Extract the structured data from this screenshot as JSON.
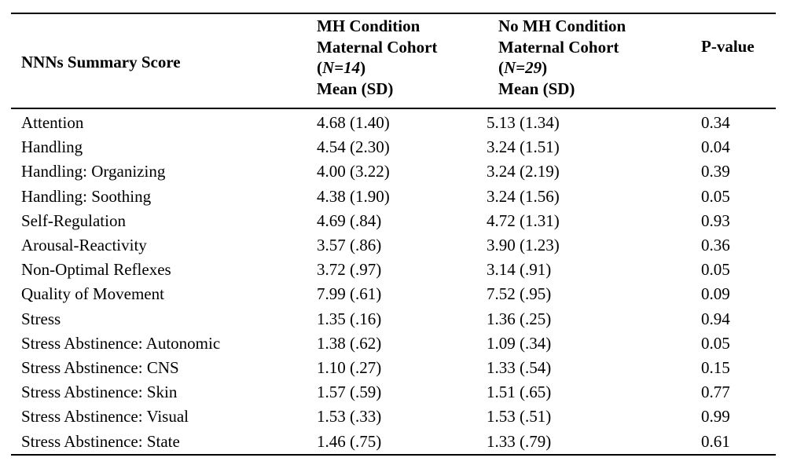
{
  "header": {
    "col1": "NNNs Summary Score",
    "col2_line1": "MH Condition",
    "col2_line2": "Maternal Cohort",
    "col2_n_open": "(",
    "col2_n": "N=14",
    "col2_n_close": ")",
    "col2_line4": "Mean (SD)",
    "col3_line1": "No MH Condition",
    "col3_line2": "Maternal Cohort",
    "col3_n_open": "(",
    "col3_n": "N=29",
    "col3_n_close": ")",
    "col3_line4": "Mean (SD)",
    "col4": "P-value"
  },
  "rows": [
    {
      "label": "Attention",
      "mh": "4.68 (1.40)",
      "nomh": "5.13 (1.34)",
      "p": "0.34"
    },
    {
      "label": "Handling",
      "mh": "4.54 (2.30)",
      "nomh": "3.24 (1.51)",
      "p": "0.04"
    },
    {
      "label": "Handling: Organizing",
      "mh": "4.00 (3.22)",
      "nomh": "3.24 (2.19)",
      "p": "0.39"
    },
    {
      "label": "Handling: Soothing",
      "mh": "4.38 (1.90)",
      "nomh": "3.24 (1.56)",
      "p": "0.05"
    },
    {
      "label": "Self-Regulation",
      "mh": "4.69 (.84)",
      "nomh": "4.72 (1.31)",
      "p": "0.93"
    },
    {
      "label": "Arousal-Reactivity",
      "mh": "3.57 (.86)",
      "nomh": "3.90 (1.23)",
      "p": "0.36"
    },
    {
      "label": "Non-Optimal Reflexes",
      "mh": "3.72 (.97)",
      "nomh": "3.14 (.91)",
      "p": "0.05"
    },
    {
      "label": "Quality of Movement",
      "mh": "7.99 (.61)",
      "nomh": "7.52 (.95)",
      "p": "0.09"
    },
    {
      "label": "Stress",
      "mh": "1.35 (.16)",
      "nomh": "1.36 (.25)",
      "p": "0.94"
    },
    {
      "label": "Stress Abstinence: Autonomic",
      "mh": "1.38 (.62)",
      "nomh": "1.09 (.34)",
      "p": "0.05"
    },
    {
      "label": "Stress Abstinence: CNS",
      "mh": "1.10 (.27)",
      "nomh": "1.33 (.54)",
      "p": "0.15"
    },
    {
      "label": "Stress Abstinence: Skin",
      "mh": "1.57 (.59)",
      "nomh": "1.51 (.65)",
      "p": "0.77"
    },
    {
      "label": "Stress Abstinence: Visual",
      "mh": "1.53 (.33)",
      "nomh": "1.53 (.51)",
      "p": "0.99"
    },
    {
      "label": "Stress Abstinence: State",
      "mh": "1.46 (.75)",
      "nomh": "1.33 (.79)",
      "p": "0.61"
    }
  ]
}
